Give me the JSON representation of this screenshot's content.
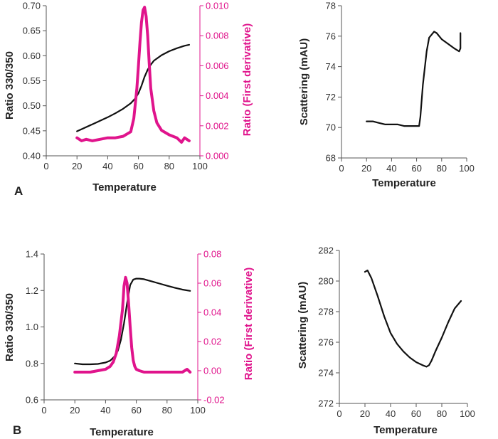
{
  "chart_data": [
    {
      "id": "A-left",
      "type": "line",
      "panel_label": "A",
      "xlabel": "Temperature",
      "ylabel": "Ratio 330/350",
      "y2label": "Ratio (First derivative)",
      "xlim": [
        0,
        100
      ],
      "ylim": [
        0.4,
        0.7
      ],
      "y2lim": [
        0.0,
        0.01
      ],
      "xticks": [
        "0",
        "20",
        "40",
        "60",
        "80",
        "100"
      ],
      "yticks": [
        "0.40",
        "0.45",
        "0.50",
        "0.55",
        "0.60",
        "0.65",
        "0.70"
      ],
      "y2ticks": [
        "0.000",
        "0.002",
        "0.004",
        "0.006",
        "0.008",
        "0.010"
      ],
      "series": [
        {
          "name": "Ratio 330/350",
          "axis": "left",
          "color": "#111111",
          "x": [
            20,
            25,
            30,
            35,
            40,
            45,
            50,
            55,
            58,
            60,
            62,
            64,
            66,
            68,
            70,
            75,
            80,
            85,
            90,
            93
          ],
          "y": [
            0.449,
            0.456,
            0.463,
            0.47,
            0.477,
            0.485,
            0.494,
            0.505,
            0.515,
            0.525,
            0.54,
            0.558,
            0.572,
            0.582,
            0.59,
            0.601,
            0.609,
            0.615,
            0.62,
            0.622
          ]
        },
        {
          "name": "Ratio (First derivative)",
          "axis": "right",
          "color": "#e0148c",
          "x": [
            20,
            23,
            26,
            30,
            35,
            40,
            45,
            50,
            55,
            57,
            59,
            60,
            61,
            62,
            63,
            64,
            65,
            66,
            67,
            68,
            70,
            72,
            75,
            80,
            85,
            88,
            90,
            93
          ],
          "y": [
            0.0012,
            0.001,
            0.0011,
            0.001,
            0.0011,
            0.0012,
            0.0012,
            0.0013,
            0.0016,
            0.0025,
            0.0045,
            0.006,
            0.0076,
            0.0089,
            0.0097,
            0.0099,
            0.0093,
            0.008,
            0.0062,
            0.0045,
            0.003,
            0.0022,
            0.0017,
            0.0014,
            0.0012,
            0.0009,
            0.0012,
            0.001
          ]
        }
      ]
    },
    {
      "id": "A-right",
      "type": "line",
      "xlabel": "Temperature",
      "ylabel": "Scattering (mAU)",
      "xlim": [
        0,
        100
      ],
      "ylim": [
        68,
        78
      ],
      "xticks": [
        "0",
        "20",
        "40",
        "60",
        "80",
        "100"
      ],
      "yticks": [
        "68",
        "70",
        "72",
        "74",
        "76",
        "78"
      ],
      "series": [
        {
          "name": "Scattering",
          "color": "#111111",
          "x": [
            20,
            25,
            30,
            35,
            40,
            45,
            50,
            55,
            60,
            62,
            63,
            65,
            68,
            70,
            72,
            74,
            76,
            78,
            80,
            85,
            90,
            94,
            95,
            95
          ],
          "y": [
            70.4,
            70.4,
            70.3,
            70.2,
            70.2,
            70.2,
            70.1,
            70.1,
            70.1,
            70.1,
            70.7,
            72.8,
            75.0,
            75.9,
            76.1,
            76.3,
            76.2,
            76.0,
            75.8,
            75.5,
            75.2,
            75.0,
            75.2,
            76.2
          ]
        }
      ]
    },
    {
      "id": "B-left",
      "type": "line",
      "panel_label": "B",
      "xlabel": "Temperature",
      "ylabel": "Ratio 330/350",
      "y2label": "Ratio (First derivative)",
      "xlim": [
        0,
        100
      ],
      "ylim": [
        0.6,
        1.4
      ],
      "y2lim": [
        -0.02,
        0.08
      ],
      "xticks": [
        "0",
        "20",
        "40",
        "60",
        "80",
        "100"
      ],
      "yticks": [
        "0.6",
        "0.8",
        "1.0",
        "1.2",
        "1.4"
      ],
      "y2ticks": [
        "-0.02",
        "0.00",
        "0.02",
        "0.04",
        "0.06",
        "0.08"
      ],
      "series": [
        {
          "name": "Ratio 330/350",
          "axis": "left",
          "color": "#111111",
          "x": [
            20,
            25,
            30,
            35,
            40,
            43,
            46,
            48,
            50,
            52,
            54,
            56,
            58,
            60,
            62,
            65,
            70,
            75,
            80,
            85,
            90,
            95
          ],
          "y": [
            0.8,
            0.795,
            0.795,
            0.797,
            0.805,
            0.815,
            0.84,
            0.87,
            0.93,
            1.02,
            1.13,
            1.23,
            1.26,
            1.265,
            1.265,
            1.262,
            1.25,
            1.238,
            1.226,
            1.215,
            1.205,
            1.198
          ]
        },
        {
          "name": "Ratio (First derivative)",
          "axis": "right",
          "color": "#e0148c",
          "x": [
            20,
            25,
            30,
            35,
            40,
            43,
            45,
            47,
            49,
            51,
            52,
            53,
            54,
            55,
            56,
            57,
            58,
            59,
            60,
            62,
            65,
            70,
            75,
            80,
            85,
            90,
            93,
            95
          ],
          "y": [
            -0.001,
            -0.001,
            -0.001,
            0.0,
            0.001,
            0.003,
            0.006,
            0.012,
            0.024,
            0.042,
            0.058,
            0.064,
            0.06,
            0.046,
            0.03,
            0.016,
            0.007,
            0.003,
            0.001,
            0.0,
            -0.001,
            -0.001,
            -0.001,
            -0.001,
            -0.001,
            -0.001,
            0.001,
            -0.001
          ]
        }
      ]
    },
    {
      "id": "B-right",
      "type": "line",
      "xlabel": "Temperature",
      "ylabel": "Scattering (mAU)",
      "xlim": [
        0,
        100
      ],
      "ylim": [
        272,
        282
      ],
      "xticks": [
        "0",
        "20",
        "40",
        "60",
        "80",
        "100"
      ],
      "yticks": [
        "272",
        "274",
        "276",
        "278",
        "280",
        "282"
      ],
      "series": [
        {
          "name": "Scattering",
          "color": "#111111",
          "x": [
            20,
            22,
            25,
            30,
            35,
            40,
            45,
            50,
            55,
            60,
            65,
            68,
            70,
            72,
            75,
            80,
            85,
            90,
            95
          ],
          "y": [
            280.6,
            280.7,
            280.2,
            279.0,
            277.7,
            276.6,
            275.9,
            275.4,
            275.0,
            274.7,
            274.5,
            274.4,
            274.5,
            274.8,
            275.4,
            276.3,
            277.3,
            278.2,
            278.7
          ]
        }
      ]
    }
  ]
}
